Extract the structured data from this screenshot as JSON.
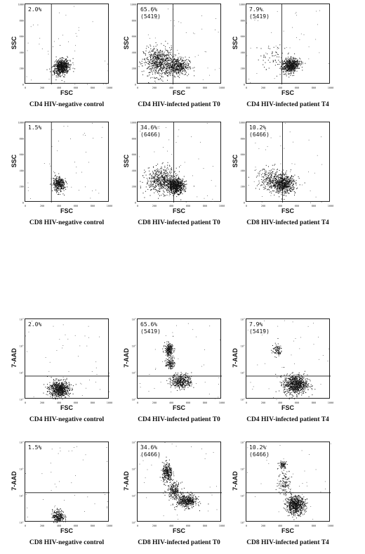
{
  "chart_data": [
    {
      "type": "scatter",
      "group": "ssc",
      "xlabel": "FSC",
      "ylabel": "SSC",
      "percent": "2.0%",
      "count": "",
      "caption": "CD4 HIV-negative control",
      "gate": {
        "type": "vertical",
        "x": 310
      },
      "xlim": [
        0,
        1000
      ],
      "ylim": [
        0,
        1000
      ],
      "clusters": [
        {
          "x": 430,
          "y": 220,
          "sx": 60,
          "sy": 55,
          "n": 700,
          "rot": 0.7
        }
      ]
    },
    {
      "type": "scatter",
      "group": "ssc",
      "xlabel": "FSC",
      "ylabel": "SSC",
      "percent": "65.6%",
      "count": "(5419)",
      "caption": "CD4 HIV-infected patient T0",
      "gate": {
        "type": "vertical",
        "x": 420
      },
      "xlim": [
        0,
        1000
      ],
      "ylim": [
        0,
        1000
      ],
      "clusters": [
        {
          "x": 250,
          "y": 280,
          "sx": 90,
          "sy": 90,
          "n": 650,
          "rot": 0
        },
        {
          "x": 470,
          "y": 230,
          "sx": 70,
          "sy": 55,
          "n": 450,
          "rot": 0
        }
      ]
    },
    {
      "type": "scatter",
      "group": "ssc",
      "xlabel": "FSC",
      "ylabel": "SSC",
      "percent": "7.9%",
      "count": "(5419)",
      "caption": "CD4 HIV-infected patient T4",
      "gate": {
        "type": "vertical",
        "x": 420
      },
      "xlim": [
        0,
        1000
      ],
      "ylim": [
        0,
        1000
      ],
      "clusters": [
        {
          "x": 520,
          "y": 240,
          "sx": 60,
          "sy": 50,
          "n": 650,
          "rot": 0.6
        },
        {
          "x": 300,
          "y": 350,
          "sx": 90,
          "sy": 80,
          "n": 60,
          "rot": 0
        }
      ]
    },
    {
      "type": "scatter",
      "group": "ssc",
      "xlabel": "FSC",
      "ylabel": "SSC",
      "percent": "1.5%",
      "count": "",
      "caption": "CD8 HIV-negative control",
      "gate": {
        "type": "vertical",
        "x": 310
      },
      "xlim": [
        0,
        1000
      ],
      "ylim": [
        0,
        1000
      ],
      "clusters": [
        {
          "x": 400,
          "y": 230,
          "sx": 40,
          "sy": 55,
          "n": 350,
          "rot": 0.6
        }
      ]
    },
    {
      "type": "scatter",
      "group": "ssc",
      "xlabel": "FSC",
      "ylabel": "SSC",
      "percent": "34.6%",
      "count": "(6466)",
      "caption": "CD8 HIV-infected patient T0",
      "gate": {
        "type": "vertical",
        "x": 430
      },
      "xlim": [
        0,
        1000
      ],
      "ylim": [
        0,
        1000
      ],
      "clusters": [
        {
          "x": 280,
          "y": 280,
          "sx": 90,
          "sy": 80,
          "n": 550,
          "rot": 0
        },
        {
          "x": 450,
          "y": 210,
          "sx": 50,
          "sy": 45,
          "n": 700,
          "rot": 0
        }
      ]
    },
    {
      "type": "scatter",
      "group": "ssc",
      "xlabel": "FSC",
      "ylabel": "SSC",
      "percent": "10.2%",
      "count": "(6466)",
      "caption": "CD8 HIV-infected patient T4",
      "gate": {
        "type": "vertical",
        "x": 430
      },
      "xlim": [
        0,
        1000
      ],
      "ylim": [
        0,
        1000
      ],
      "clusters": [
        {
          "x": 440,
          "y": 230,
          "sx": 70,
          "sy": 55,
          "n": 650,
          "rot": 0
        },
        {
          "x": 300,
          "y": 300,
          "sx": 90,
          "sy": 70,
          "n": 250,
          "rot": 0
        }
      ]
    },
    {
      "type": "scatter",
      "group": "aad",
      "xlabel": "FSC",
      "ylabel": "7-AAD",
      "percent": "2.0%",
      "count": "",
      "caption": "CD4 HIV-negative control",
      "gate": {
        "type": "horizontal",
        "y": 290
      },
      "xlim": [
        0,
        1000
      ],
      "ylim": [
        0,
        1000
      ],
      "clusters": [
        {
          "x": 400,
          "y": 130,
          "sx": 60,
          "sy": 50,
          "n": 700,
          "rot": 0
        }
      ]
    },
    {
      "type": "scatter",
      "group": "aad",
      "xlabel": "FSC",
      "ylabel": "7-AAD",
      "percent": "65.6%",
      "count": "(5419)",
      "caption": "CD4 HIV-infected patient T0",
      "gate": {
        "type": "horizontal",
        "y": 290
      },
      "xlim": [
        0,
        1000
      ],
      "ylim": [
        0,
        1000
      ],
      "clusters": [
        {
          "x": 370,
          "y": 620,
          "sx": 25,
          "sy": 40,
          "n": 250,
          "rot": 0
        },
        {
          "x": 380,
          "y": 450,
          "sx": 25,
          "sy": 30,
          "n": 120,
          "rot": 0
        },
        {
          "x": 520,
          "y": 230,
          "sx": 60,
          "sy": 45,
          "n": 400,
          "rot": 0
        }
      ]
    },
    {
      "type": "scatter",
      "group": "aad",
      "xlabel": "FSC",
      "ylabel": "7-AAD",
      "percent": "7.9%",
      "count": "(5419)",
      "caption": "CD4 HIV-infected patient T4",
      "gate": {
        "type": "horizontal",
        "y": 290
      },
      "xlim": [
        0,
        1000
      ],
      "ylim": [
        0,
        1000
      ],
      "clusters": [
        {
          "x": 580,
          "y": 190,
          "sx": 70,
          "sy": 60,
          "n": 800,
          "rot": 0
        },
        {
          "x": 360,
          "y": 620,
          "sx": 30,
          "sy": 40,
          "n": 90,
          "rot": 0
        }
      ]
    },
    {
      "type": "scatter",
      "group": "aad",
      "xlabel": "FSC",
      "ylabel": "7-AAD",
      "percent": "1.5%",
      "count": "",
      "caption": "CD8 HIV-negative control",
      "gate": {
        "type": "horizontal",
        "y": 370
      },
      "xlim": [
        0,
        1000
      ],
      "ylim": [
        0,
        1000
      ],
      "clusters": [
        {
          "x": 390,
          "y": 80,
          "sx": 35,
          "sy": 40,
          "n": 250,
          "rot": 0
        }
      ]
    },
    {
      "type": "scatter",
      "group": "aad",
      "xlabel": "FSC",
      "ylabel": "7-AAD",
      "percent": "34.6%",
      "count": "(6466)",
      "caption": "CD8 HIV-infected patient T0",
      "gate": {
        "type": "horizontal",
        "y": 370
      },
      "xlim": [
        0,
        1000
      ],
      "ylim": [
        0,
        1000
      ],
      "clusters": [
        {
          "x": 350,
          "y": 620,
          "sx": 30,
          "sy": 60,
          "n": 300,
          "rot": 0
        },
        {
          "x": 430,
          "y": 400,
          "sx": 40,
          "sy": 50,
          "n": 200,
          "rot": 0
        },
        {
          "x": 580,
          "y": 270,
          "sx": 60,
          "sy": 40,
          "n": 450,
          "rot": 0
        }
      ]
    },
    {
      "type": "scatter",
      "group": "aad",
      "xlabel": "FSC",
      "ylabel": "7-AAD",
      "percent": "10.2%",
      "count": "(6466)",
      "caption": "CD8 HIV-infected patient T4",
      "gate": {
        "type": "horizontal",
        "y": 370
      },
      "xlim": [
        0,
        1000
      ],
      "ylim": [
        0,
        1000
      ],
      "clusters": [
        {
          "x": 580,
          "y": 220,
          "sx": 55,
          "sy": 55,
          "n": 700,
          "rot": 0
        },
        {
          "x": 430,
          "y": 720,
          "sx": 25,
          "sy": 25,
          "n": 80,
          "rot": 0
        },
        {
          "x": 450,
          "y": 500,
          "sx": 40,
          "sy": 80,
          "n": 120,
          "rot": 0
        }
      ]
    }
  ],
  "tick_labels": {
    "x": [
      "0",
      "200",
      "400",
      "600",
      "800",
      "1000"
    ],
    "y_linear": [
      "0",
      "200",
      "400",
      "600",
      "800",
      "1000"
    ],
    "y_log": [
      "10°",
      "10¹",
      "10²",
      "10³"
    ]
  }
}
